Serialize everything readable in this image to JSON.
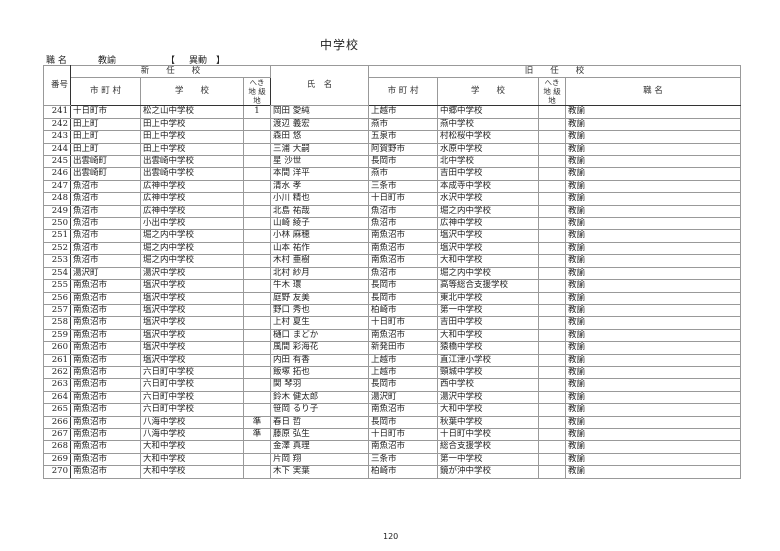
{
  "title": "中学校",
  "meta": {
    "label": "職 名",
    "position": "教諭",
    "bracket_open": "【",
    "category": "異動",
    "bracket_close": "】"
  },
  "headers": {
    "number": "番号",
    "new_school": "新　　任　　校",
    "old_school": "旧　　任　　校",
    "municipality": "市 町 村",
    "school": "学　　校",
    "hekichi": "へき地 級 地",
    "name": "氏　名",
    "position": "職 名"
  },
  "rows": [
    {
      "no": "241",
      "new_city": "十日町市",
      "new_school": "松之山中学校",
      "new_hk": "1",
      "name": "岡田 愛純",
      "old_city": "上越市",
      "old_school": "中郷中学校",
      "old_hk": "",
      "pos": "教諭"
    },
    {
      "no": "242",
      "new_city": "田上町",
      "new_school": "田上中学校",
      "new_hk": "",
      "name": "渡辺 義宏",
      "old_city": "燕市",
      "old_school": "燕中学校",
      "old_hk": "",
      "pos": "教諭"
    },
    {
      "no": "243",
      "new_city": "田上町",
      "new_school": "田上中学校",
      "new_hk": "",
      "name": "森田 悠",
      "old_city": "五泉市",
      "old_school": "村松桜中学校",
      "old_hk": "",
      "pos": "教諭"
    },
    {
      "no": "244",
      "new_city": "田上町",
      "new_school": "田上中学校",
      "new_hk": "",
      "name": "三浦 大嗣",
      "old_city": "阿賀野市",
      "old_school": "水原中学校",
      "old_hk": "",
      "pos": "教諭"
    },
    {
      "no": "245",
      "new_city": "出雲崎町",
      "new_school": "出雲崎中学校",
      "new_hk": "",
      "name": "星 沙世",
      "old_city": "長岡市",
      "old_school": "北中学校",
      "old_hk": "",
      "pos": "教諭"
    },
    {
      "no": "246",
      "new_city": "出雲崎町",
      "new_school": "出雲崎中学校",
      "new_hk": "",
      "name": "本間 洋平",
      "old_city": "燕市",
      "old_school": "吉田中学校",
      "old_hk": "",
      "pos": "教諭"
    },
    {
      "no": "247",
      "new_city": "魚沼市",
      "new_school": "広神中学校",
      "new_hk": "",
      "name": "清水 孝",
      "old_city": "三条市",
      "old_school": "本成寺中学校",
      "old_hk": "",
      "pos": "教諭"
    },
    {
      "no": "248",
      "new_city": "魚沼市",
      "new_school": "広神中学校",
      "new_hk": "",
      "name": "小川 精也",
      "old_city": "十日町市",
      "old_school": "水沢中学校",
      "old_hk": "",
      "pos": "教諭"
    },
    {
      "no": "249",
      "new_city": "魚沼市",
      "new_school": "広神中学校",
      "new_hk": "",
      "name": "北島 祐哉",
      "old_city": "魚沼市",
      "old_school": "堀之内中学校",
      "old_hk": "",
      "pos": "教諭"
    },
    {
      "no": "250",
      "new_city": "魚沼市",
      "new_school": "小出中学校",
      "new_hk": "",
      "name": "山崎 綾子",
      "old_city": "魚沼市",
      "old_school": "広神中学校",
      "old_hk": "",
      "pos": "教諭"
    },
    {
      "no": "251",
      "new_city": "魚沼市",
      "new_school": "堀之内中学校",
      "new_hk": "",
      "name": "小林 麻穂",
      "old_city": "南魚沼市",
      "old_school": "塩沢中学校",
      "old_hk": "",
      "pos": "教諭"
    },
    {
      "no": "252",
      "new_city": "魚沼市",
      "new_school": "堀之内中学校",
      "new_hk": "",
      "name": "山本 祐作",
      "old_city": "南魚沼市",
      "old_school": "塩沢中学校",
      "old_hk": "",
      "pos": "教諭"
    },
    {
      "no": "253",
      "new_city": "魚沼市",
      "new_school": "堀之内中学校",
      "new_hk": "",
      "name": "木村 亜樹",
      "old_city": "南魚沼市",
      "old_school": "大和中学校",
      "old_hk": "",
      "pos": "教諭"
    },
    {
      "no": "254",
      "new_city": "湯沢町",
      "new_school": "湯沢中学校",
      "new_hk": "",
      "name": "北村 紗月",
      "old_city": "魚沼市",
      "old_school": "堀之内中学校",
      "old_hk": "",
      "pos": "教諭"
    },
    {
      "no": "255",
      "new_city": "南魚沼市",
      "new_school": "塩沢中学校",
      "new_hk": "",
      "name": "牛木 環",
      "old_city": "長岡市",
      "old_school": "高等総合支援学校",
      "old_hk": "",
      "pos": "教諭"
    },
    {
      "no": "256",
      "new_city": "南魚沼市",
      "new_school": "塩沢中学校",
      "new_hk": "",
      "name": "庭野 友美",
      "old_city": "長岡市",
      "old_school": "東北中学校",
      "old_hk": "",
      "pos": "教諭"
    },
    {
      "no": "257",
      "new_city": "南魚沼市",
      "new_school": "塩沢中学校",
      "new_hk": "",
      "name": "野口 秀也",
      "old_city": "柏崎市",
      "old_school": "第一中学校",
      "old_hk": "",
      "pos": "教諭"
    },
    {
      "no": "258",
      "new_city": "南魚沼市",
      "new_school": "塩沢中学校",
      "new_hk": "",
      "name": "上村 夏生",
      "old_city": "十日町市",
      "old_school": "吉田中学校",
      "old_hk": "",
      "pos": "教諭"
    },
    {
      "no": "259",
      "new_city": "南魚沼市",
      "new_school": "塩沢中学校",
      "new_hk": "",
      "name": "樋口 まどか",
      "old_city": "南魚沼市",
      "old_school": "大和中学校",
      "old_hk": "",
      "pos": "教諭"
    },
    {
      "no": "260",
      "new_city": "南魚沼市",
      "new_school": "塩沢中学校",
      "new_hk": "",
      "name": "風間 彩海花",
      "old_city": "新発田市",
      "old_school": "猿橋中学校",
      "old_hk": "",
      "pos": "教諭"
    },
    {
      "no": "261",
      "new_city": "南魚沼市",
      "new_school": "塩沢中学校",
      "new_hk": "",
      "name": "内田 有香",
      "old_city": "上越市",
      "old_school": "直江津小学校",
      "old_hk": "",
      "pos": "教諭"
    },
    {
      "no": "262",
      "new_city": "南魚沼市",
      "new_school": "六日町中学校",
      "new_hk": "",
      "name": "飯塚 拓也",
      "old_city": "上越市",
      "old_school": "頸城中学校",
      "old_hk": "",
      "pos": "教諭"
    },
    {
      "no": "263",
      "new_city": "南魚沼市",
      "new_school": "六日町中学校",
      "new_hk": "",
      "name": "関 琴羽",
      "old_city": "長岡市",
      "old_school": "西中学校",
      "old_hk": "",
      "pos": "教諭"
    },
    {
      "no": "264",
      "new_city": "南魚沼市",
      "new_school": "六日町中学校",
      "new_hk": "",
      "name": "鈴木 健太郎",
      "old_city": "湯沢町",
      "old_school": "湯沢中学校",
      "old_hk": "",
      "pos": "教諭"
    },
    {
      "no": "265",
      "new_city": "南魚沼市",
      "new_school": "六日町中学校",
      "new_hk": "",
      "name": "笹岡 るり子",
      "old_city": "南魚沼市",
      "old_school": "大和中学校",
      "old_hk": "",
      "pos": "教諭"
    },
    {
      "no": "266",
      "new_city": "南魚沼市",
      "new_school": "八海中学校",
      "new_hk": "準",
      "name": "春日 哲",
      "old_city": "長岡市",
      "old_school": "秋葉中学校",
      "old_hk": "",
      "pos": "教諭"
    },
    {
      "no": "267",
      "new_city": "南魚沼市",
      "new_school": "八海中学校",
      "new_hk": "準",
      "name": "藤原 弘生",
      "old_city": "十日町市",
      "old_school": "十日町中学校",
      "old_hk": "",
      "pos": "教諭"
    },
    {
      "no": "268",
      "new_city": "南魚沼市",
      "new_school": "大和中学校",
      "new_hk": "",
      "name": "金澤 真理",
      "old_city": "南魚沼市",
      "old_school": "総合支援学校",
      "old_hk": "",
      "pos": "教諭"
    },
    {
      "no": "269",
      "new_city": "南魚沼市",
      "new_school": "大和中学校",
      "new_hk": "",
      "name": "片岡 翔",
      "old_city": "三条市",
      "old_school": "第一中学校",
      "old_hk": "",
      "pos": "教諭"
    },
    {
      "no": "270",
      "new_city": "南魚沼市",
      "new_school": "大和中学校",
      "new_hk": "",
      "name": "木下 実葉",
      "old_city": "柏崎市",
      "old_school": "鏡が沖中学校",
      "old_hk": "",
      "pos": "教諭"
    }
  ],
  "page_number": "120"
}
